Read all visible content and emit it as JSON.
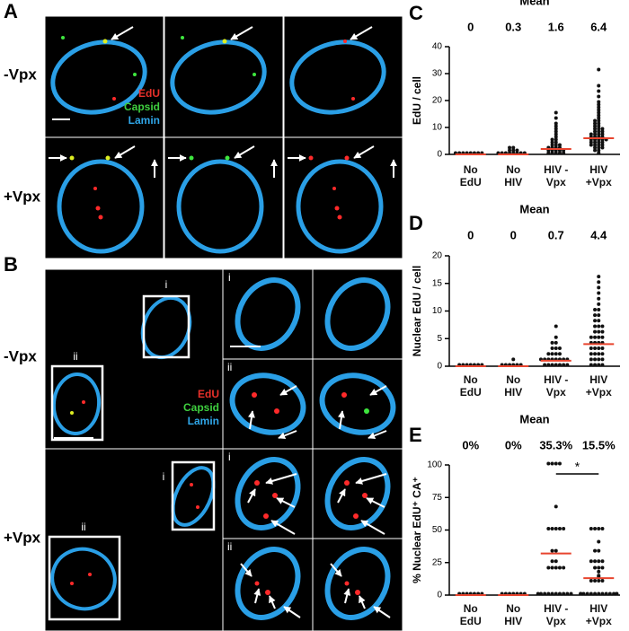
{
  "panels": {
    "A": {
      "letter": "A",
      "rows": [
        "-Vpx",
        "+Vpx"
      ],
      "legend": [
        "EdU",
        "Capsid",
        "Lamin"
      ]
    },
    "B": {
      "letter": "B",
      "rows": [
        "-Vpx",
        "+Vpx"
      ],
      "legend": [
        "EdU",
        "Capsid",
        "Lamin"
      ],
      "insets": [
        "i",
        "ii"
      ]
    }
  },
  "chart_data": [
    {
      "type": "strip",
      "panel": "C",
      "mean_header": "Mean",
      "ylabel": "EdU / cell",
      "categories": [
        "No EdU",
        "No HIV",
        "HIV -Vpx",
        "HIV +Vpx"
      ],
      "means": [
        0,
        0.3,
        1.6,
        6.4
      ],
      "medians": [
        0,
        0,
        2,
        6
      ],
      "median_color": "#e8442e",
      "color": "#111111",
      "ylim": [
        0,
        40
      ],
      "yticks": [
        0,
        10,
        20,
        30,
        40
      ],
      "points": [
        [
          0,
          0,
          0,
          0,
          0,
          0,
          0,
          0
        ],
        [
          0,
          0,
          0,
          0,
          0,
          0,
          1,
          1,
          1,
          2,
          2,
          0,
          0
        ],
        [
          0,
          0,
          0,
          0,
          0,
          1,
          1,
          1,
          1,
          1,
          2,
          2,
          2,
          2,
          3,
          3,
          3,
          4,
          4,
          5,
          5,
          6,
          7,
          8,
          9,
          10,
          11,
          13,
          15
        ],
        [
          0,
          1,
          1,
          2,
          2,
          2,
          3,
          3,
          3,
          3,
          4,
          4,
          4,
          4,
          5,
          5,
          5,
          5,
          5,
          6,
          6,
          6,
          6,
          7,
          7,
          7,
          7,
          8,
          8,
          8,
          9,
          9,
          9,
          10,
          10,
          11,
          11,
          12,
          12,
          13,
          14,
          15,
          16,
          17,
          18,
          19,
          21,
          23,
          25,
          31
        ]
      ]
    },
    {
      "type": "strip",
      "panel": "D",
      "mean_header": "Mean",
      "ylabel": "Nuclear EdU / cell",
      "categories": [
        "No EdU",
        "No HIV",
        "HIV -Vpx",
        "HIV +Vpx"
      ],
      "means": [
        0,
        0,
        0.7,
        4.4
      ],
      "medians": [
        0,
        0,
        1,
        4
      ],
      "median_color": "#e8442e",
      "color": "#111111",
      "ylim": [
        0,
        20
      ],
      "yticks": [
        0,
        5,
        10,
        15,
        20
      ],
      "points": [
        [
          0,
          0,
          0,
          0,
          0,
          0,
          0
        ],
        [
          0,
          0,
          0,
          0,
          0,
          0,
          1
        ],
        [
          0,
          0,
          0,
          0,
          0,
          0,
          0,
          1,
          1,
          1,
          1,
          1,
          1,
          1,
          1,
          2,
          2,
          2,
          2,
          3,
          3,
          3,
          4,
          4,
          5,
          7
        ],
        [
          0,
          0,
          0,
          0,
          1,
          1,
          1,
          1,
          2,
          2,
          2,
          2,
          3,
          3,
          3,
          3,
          4,
          4,
          4,
          4,
          5,
          5,
          5,
          5,
          6,
          6,
          6,
          7,
          7,
          7,
          8,
          8,
          9,
          9,
          10,
          10,
          11,
          12,
          13,
          14,
          15,
          16
        ]
      ]
    },
    {
      "type": "strip",
      "panel": "E",
      "mean_header": "Mean",
      "ylabel": "% Nuclear EdU⁺ CA⁺",
      "categories": [
        "No EdU",
        "No HIV",
        "HIV -Vpx",
        "HIV +Vpx"
      ],
      "means": [
        0,
        0,
        35.3,
        15.5
      ],
      "mean_labels": [
        "0%",
        "0%",
        "35.3%",
        "15.5%"
      ],
      "medians": [
        0,
        0,
        32,
        13
      ],
      "median_color": "#e8442e",
      "color": "#111111",
      "ylim": [
        0,
        100
      ],
      "yticks": [
        0,
        25,
        50,
        75,
        100
      ],
      "significance": {
        "between": [
          2,
          3
        ],
        "label": "*"
      },
      "points": [
        [
          0,
          0,
          0,
          0,
          0,
          0,
          0
        ],
        [
          0,
          0,
          0,
          0,
          0,
          0,
          0
        ],
        [
          0,
          0,
          0,
          0,
          0,
          0,
          0,
          0,
          0,
          0,
          20,
          20,
          20,
          20,
          20,
          25,
          25,
          33,
          33,
          50,
          50,
          50,
          50,
          50,
          67,
          100,
          100,
          100,
          100
        ],
        [
          0,
          0,
          0,
          0,
          0,
          0,
          0,
          0,
          0,
          0,
          0,
          0,
          0,
          0,
          0,
          10,
          10,
          10,
          10,
          13,
          14,
          17,
          20,
          20,
          20,
          25,
          25,
          25,
          25,
          33,
          33,
          40,
          50,
          50,
          50,
          50
        ]
      ]
    }
  ]
}
